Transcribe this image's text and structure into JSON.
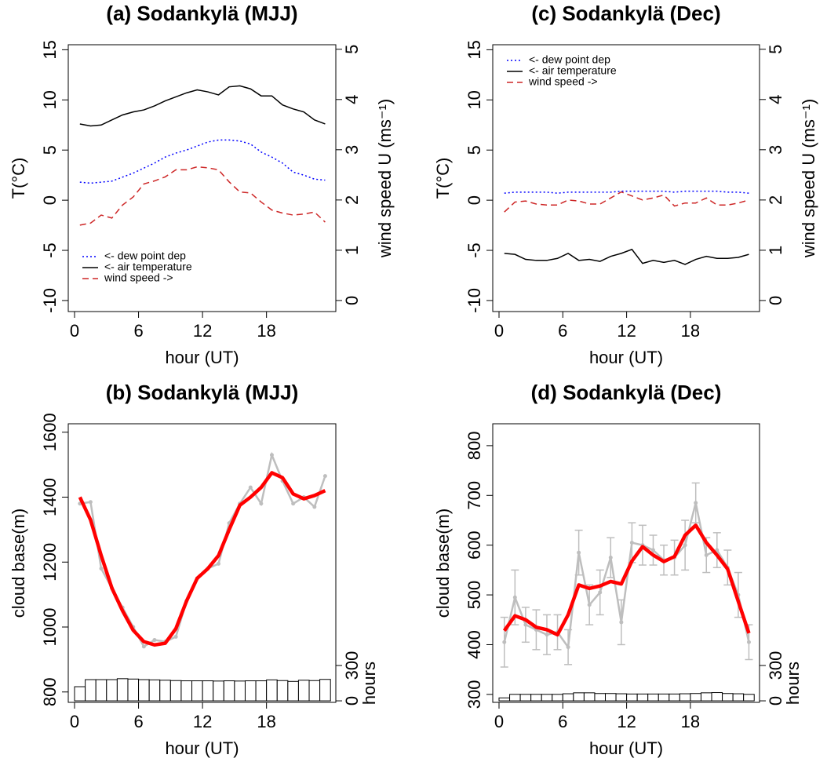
{
  "chart_data": [
    {
      "type": "line",
      "title": "(a) Sodankylä (MJJ)",
      "xlabel": "hour (UT)",
      "ylabel": "T(°C)",
      "y2label": "wind speed U (ms⁻¹)",
      "x": [
        0.5,
        1.5,
        2.5,
        3.5,
        4.5,
        5.5,
        6.5,
        7.5,
        8.5,
        9.5,
        10.5,
        11.5,
        12.5,
        13.5,
        14.5,
        15.5,
        16.5,
        17.5,
        18.5,
        19.5,
        20.5,
        21.5,
        22.5,
        23.5
      ],
      "xlim": [
        -0.59,
        24.5
      ],
      "xticks": [
        0,
        6,
        12,
        18
      ],
      "ylim": [
        -11.1,
        15.5
      ],
      "yticks": [
        -10,
        -5,
        0,
        5,
        10,
        15
      ],
      "y2lim": [
        -0.22,
        5.09
      ],
      "y2ticks": [
        0,
        1,
        2,
        3,
        4,
        5
      ],
      "legend": "bottomleft",
      "series": [
        {
          "name": "<- dew point dep",
          "color": "#0000ff",
          "dash": "dotted",
          "values": [
            1.8,
            1.7,
            1.8,
            1.9,
            2.3,
            2.7,
            3.2,
            3.7,
            4.3,
            4.7,
            5.0,
            5.4,
            5.8,
            6.0,
            6.0,
            5.9,
            5.6,
            4.8,
            4.3,
            3.7,
            2.8,
            2.5,
            2.1,
            2.0
          ]
        },
        {
          "name": "<- air temperature",
          "color": "#000000",
          "dash": "solid",
          "values": [
            7.6,
            7.4,
            7.5,
            8.0,
            8.5,
            8.8,
            9.0,
            9.4,
            9.9,
            10.3,
            10.7,
            11.0,
            10.8,
            10.5,
            11.3,
            11.4,
            11.1,
            10.4,
            10.4,
            9.5,
            9.1,
            8.8,
            8.0,
            7.6
          ]
        },
        {
          "name": "wind speed ->",
          "color": "#cd2626",
          "dash": "dashed",
          "axis": "y2",
          "values": [
            1.5,
            1.54,
            1.7,
            1.64,
            1.9,
            2.06,
            2.32,
            2.38,
            2.46,
            2.6,
            2.6,
            2.66,
            2.64,
            2.6,
            2.36,
            2.16,
            2.14,
            1.96,
            1.8,
            1.74,
            1.7,
            1.72,
            1.76,
            1.56
          ]
        }
      ]
    },
    {
      "type": "combo",
      "title": "(b) Sodankylä (MJJ)",
      "xlabel": "hour (UT)",
      "ylabel": "cloud base(m)",
      "y2label": "hours",
      "x": [
        0.5,
        1.5,
        2.5,
        3.5,
        4.5,
        5.5,
        6.5,
        7.5,
        8.5,
        9.5,
        10.5,
        11.5,
        12.5,
        13.5,
        14.5,
        15.5,
        16.5,
        17.5,
        18.5,
        19.5,
        20.5,
        21.5,
        22.5,
        23.5
      ],
      "xlim": [
        -0.59,
        24.5
      ],
      "xticks": [
        0,
        6,
        12,
        18
      ],
      "ylim": [
        768,
        1626
      ],
      "yticks": [
        800,
        1000,
        1200,
        1400,
        1600
      ],
      "y2lim": [
        -13,
        2353
      ],
      "y2ticks": [
        0,
        300
      ],
      "bars": {
        "color": "#ffffff",
        "axis": "y2",
        "values": [
          120,
          180,
          180,
          180,
          188,
          185,
          180,
          178,
          175,
          172,
          170,
          170,
          170,
          168,
          170,
          168,
          170,
          170,
          178,
          172,
          165,
          175,
          172,
          182
        ]
      },
      "raw": {
        "color": "#bebebe",
        "values": [
          1380,
          1385,
          1180,
          1120,
          1060,
          1000,
          940,
          960,
          955,
          970,
          1080,
          1150,
          1180,
          1195,
          1320,
          1380,
          1430,
          1380,
          1530,
          1450,
          1380,
          1400,
          1370,
          1465
        ]
      },
      "smooth": {
        "color": "#ff0000",
        "values": [
          1400,
          1330,
          1220,
          1120,
          1050,
          990,
          955,
          945,
          950,
          995,
          1080,
          1150,
          1180,
          1220,
          1300,
          1375,
          1400,
          1430,
          1475,
          1460,
          1410,
          1395,
          1405,
          1420
        ]
      }
    },
    {
      "type": "line",
      "title": "(c) Sodankylä (Dec)",
      "xlabel": "hour (UT)",
      "ylabel": "T(°C)",
      "y2label": "wind speed U (ms⁻¹)",
      "x": [
        0.5,
        1.5,
        2.5,
        3.5,
        4.5,
        5.5,
        6.5,
        7.5,
        8.5,
        9.5,
        10.5,
        11.5,
        12.5,
        13.5,
        14.5,
        15.5,
        16.5,
        17.5,
        18.5,
        19.5,
        20.5,
        21.5,
        22.5,
        23.5
      ],
      "xlim": [
        -0.59,
        24.5
      ],
      "xticks": [
        0,
        6,
        12,
        18
      ],
      "ylim": [
        -11.1,
        15.5
      ],
      "yticks": [
        -10,
        -5,
        0,
        5,
        10,
        15
      ],
      "y2lim": [
        -0.22,
        5.09
      ],
      "y2ticks": [
        0,
        1,
        2,
        3,
        4,
        5
      ],
      "legend": "topleft",
      "series": [
        {
          "name": "<- dew point dep",
          "color": "#0000ff",
          "dash": "dotted",
          "values": [
            0.7,
            0.8,
            0.8,
            0.8,
            0.8,
            0.7,
            0.8,
            0.8,
            0.8,
            0.8,
            0.8,
            0.9,
            0.9,
            0.9,
            0.9,
            0.9,
            0.8,
            0.9,
            0.9,
            0.9,
            0.9,
            0.8,
            0.8,
            0.7
          ]
        },
        {
          "name": "<- air temperature",
          "color": "#000000",
          "dash": "solid",
          "values": [
            -5.3,
            -5.4,
            -5.9,
            -6.0,
            -6.0,
            -5.8,
            -5.3,
            -6.0,
            -5.9,
            -6.1,
            -5.6,
            -5.3,
            -4.9,
            -6.3,
            -6.0,
            -6.2,
            -6.0,
            -6.4,
            -5.9,
            -5.6,
            -5.8,
            -5.8,
            -5.7,
            -5.4
          ]
        },
        {
          "name": "wind speed ->",
          "color": "#cd2626",
          "dash": "dashed",
          "axis": "y2",
          "values": [
            1.76,
            1.96,
            1.98,
            1.92,
            1.9,
            1.9,
            2.0,
            1.98,
            1.92,
            1.92,
            2.04,
            2.16,
            2.08,
            2.0,
            2.04,
            2.1,
            1.88,
            1.94,
            1.94,
            2.04,
            1.9,
            1.9,
            1.94,
            2.0
          ]
        }
      ]
    },
    {
      "type": "combo",
      "title": "(d) Sodankylä (Dec)",
      "xlabel": "hour (UT)",
      "ylabel": "cloud base(m)",
      "y2label": "hours",
      "x": [
        0.5,
        1.5,
        2.5,
        3.5,
        4.5,
        5.5,
        6.5,
        7.5,
        8.5,
        9.5,
        10.5,
        11.5,
        12.5,
        13.5,
        14.5,
        15.5,
        16.5,
        17.5,
        18.5,
        19.5,
        20.5,
        21.5,
        22.5,
        23.5
      ],
      "xlim": [
        -0.59,
        24.5
      ],
      "xticks": [
        0,
        6,
        12,
        18
      ],
      "ylim": [
        284,
        844
      ],
      "yticks": [
        300,
        400,
        500,
        600,
        700,
        800
      ],
      "y2lim": [
        -13,
        2353
      ],
      "y2ticks": [
        0,
        300
      ],
      "bars": {
        "color": "#ffffff",
        "axis": "y2",
        "values": [
          25,
          55,
          55,
          55,
          55,
          55,
          60,
          68,
          68,
          62,
          62,
          60,
          58,
          58,
          58,
          58,
          58,
          60,
          62,
          68,
          70,
          62,
          60,
          55
        ]
      },
      "raw": {
        "color": "#bebebe",
        "values": [
          405,
          495,
          440,
          430,
          420,
          425,
          395,
          585,
          480,
          505,
          575,
          445,
          605,
          600,
          590,
          570,
          575,
          600,
          685,
          580,
          590,
          555,
          500,
          405
        ],
        "errors": [
          50,
          55,
          35,
          40,
          40,
          35,
          35,
          45,
          40,
          45,
          40,
          45,
          40,
          40,
          30,
          30,
          35,
          50,
          40,
          35,
          35,
          35,
          45,
          35
        ]
      },
      "smooth": {
        "color": "#ff0000",
        "values": [
          428,
          458,
          450,
          435,
          430,
          420,
          460,
          520,
          513,
          518,
          527,
          522,
          568,
          597,
          580,
          567,
          577,
          620,
          640,
          605,
          580,
          552,
          487,
          423
        ]
      }
    }
  ]
}
